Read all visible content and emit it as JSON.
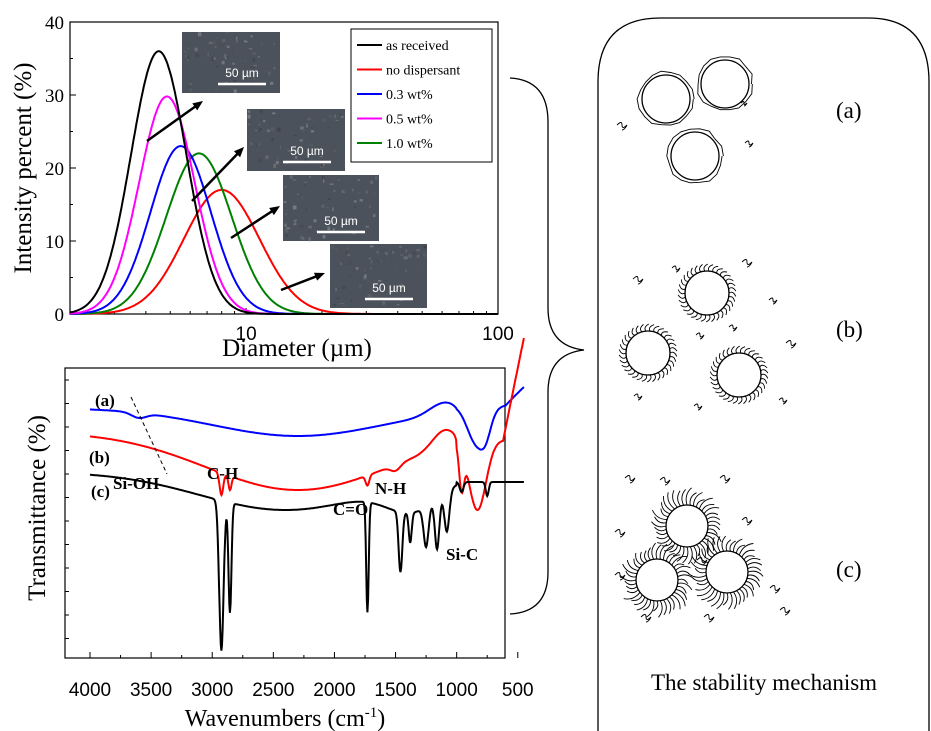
{
  "chart_data": [
    {
      "type": "line",
      "xlabel": "Diameter (µm)",
      "ylabel": "Intensity percent (%)",
      "xscale": "log",
      "xlim": [
        2,
        100
      ],
      "ylim": [
        0,
        40
      ],
      "x_ticks": [
        {
          "value": 10,
          "label": "10"
        },
        {
          "value": 100,
          "label": "100"
        }
      ],
      "y_ticks": [
        0,
        10,
        20,
        30,
        40
      ],
      "legend_position": "top-right",
      "series": [
        {
          "name": "as received",
          "color": "#000000",
          "peak_x": 4.5,
          "peak_y": 36,
          "width": 0.11
        },
        {
          "name": "no dispersant",
          "color": "#ff0000",
          "peak_x": 8.0,
          "peak_y": 17,
          "width": 0.15
        },
        {
          "name": "0.3 wt%",
          "color": "#0000ff",
          "peak_x": 5.5,
          "peak_y": 23,
          "width": 0.12
        },
        {
          "name": "0.5 wt%",
          "color": "#ff00ff",
          "peak_x": 4.85,
          "peak_y": 29.8,
          "width": 0.11
        },
        {
          "name": "1.0 wt%",
          "color": "#008000",
          "peak_x": 6.5,
          "peak_y": 22,
          "width": 0.13
        }
      ],
      "insets": [
        {
          "scale_label": "50 µm"
        },
        {
          "scale_label": "50 µm"
        },
        {
          "scale_label": "50 µm"
        },
        {
          "scale_label": "50 µm"
        }
      ]
    },
    {
      "type": "line",
      "xlabel": "Wavenumbers (cm",
      "xlabel_sup": "-1",
      "xlabel_end": ")",
      "ylabel": "Transmittance (%)",
      "xlim": [
        4000,
        400
      ],
      "x_reversed": true,
      "x_ticks": [
        4000,
        3500,
        3000,
        2500,
        2000,
        1500,
        1000,
        500
      ],
      "series": [
        {
          "name": "(a)",
          "color": "#0000ff"
        },
        {
          "name": "(b)",
          "color": "#ff0000"
        },
        {
          "name": "(c)",
          "color": "#000000"
        }
      ],
      "annotations": [
        "Si-OH",
        "C-H",
        "C=O",
        "N-H",
        "Si-C"
      ]
    }
  ],
  "mechanism": {
    "labels": [
      "(a)",
      "(b)",
      "(c)"
    ],
    "caption": "The stability mechanism"
  }
}
